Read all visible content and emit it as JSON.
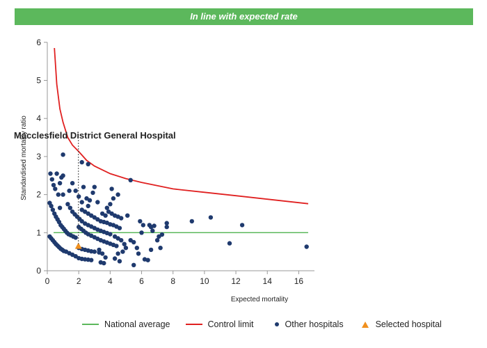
{
  "banner": {
    "text": "In line with expected rate",
    "color": "#5cb85c"
  },
  "chart_data": {
    "type": "scatter",
    "xlabel": "Expected mortality",
    "ylabel": "Standardised mortality ratio",
    "xlim": [
      0,
      17
    ],
    "ylim": [
      0,
      6
    ],
    "x_ticks": [
      0,
      2,
      4,
      6,
      8,
      10,
      12,
      14,
      16
    ],
    "y_ticks": [
      0,
      1,
      2,
      3,
      4,
      5,
      6
    ],
    "grid": false,
    "legend_position": "bottom",
    "highlight_label": "Macclesfield District General Hospital",
    "colors": {
      "national": "#5cb85c",
      "control": "#e02020",
      "others": "#1f3a6e",
      "selected": "#f0901e"
    },
    "series": [
      {
        "name": "National average",
        "kind": "line",
        "x": [
          0.4,
          16.6
        ],
        "y": [
          1,
          1
        ]
      },
      {
        "name": "Control limit",
        "kind": "line",
        "x": [
          0.45,
          0.6,
          0.8,
          1.0,
          1.3,
          1.6,
          2.0,
          2.5,
          3.0,
          4.0,
          5.0,
          6.0,
          8.0,
          10.0,
          12.0,
          14.0,
          16.6
        ],
        "y": [
          5.85,
          4.9,
          4.25,
          3.9,
          3.5,
          3.3,
          3.13,
          2.9,
          2.75,
          2.55,
          2.42,
          2.32,
          2.15,
          2.06,
          1.97,
          1.88,
          1.76
        ]
      },
      {
        "name": "Other hospitals",
        "kind": "scatter",
        "points": [
          [
            0.2,
            2.55
          ],
          [
            0.3,
            2.4
          ],
          [
            0.4,
            2.25
          ],
          [
            0.5,
            2.15
          ],
          [
            0.6,
            2.55
          ],
          [
            0.7,
            2.0
          ],
          [
            0.8,
            2.3
          ],
          [
            0.9,
            2.45
          ],
          [
            1.0,
            3.05
          ],
          [
            1.0,
            2.5
          ],
          [
            1.0,
            2.0
          ],
          [
            0.8,
            1.65
          ],
          [
            1.4,
            2.1
          ],
          [
            1.6,
            2.3
          ],
          [
            1.8,
            2.1
          ],
          [
            2.2,
            2.85
          ],
          [
            2.6,
            2.8
          ],
          [
            2.3,
            2.2
          ],
          [
            2.0,
            1.95
          ],
          [
            2.2,
            1.8
          ],
          [
            2.5,
            1.9
          ],
          [
            2.7,
            1.85
          ],
          [
            2.9,
            2.05
          ],
          [
            3.0,
            2.2
          ],
          [
            3.2,
            1.8
          ],
          [
            2.6,
            1.7
          ],
          [
            4.1,
            2.15
          ],
          [
            4.5,
            2.0
          ],
          [
            4.2,
            1.9
          ],
          [
            5.3,
            2.38
          ],
          [
            0.15,
            1.78
          ],
          [
            0.25,
            1.7
          ],
          [
            0.35,
            1.6
          ],
          [
            0.45,
            1.5
          ],
          [
            0.55,
            1.42
          ],
          [
            0.65,
            1.35
          ],
          [
            0.75,
            1.28
          ],
          [
            0.85,
            1.2
          ],
          [
            0.95,
            1.15
          ],
          [
            1.05,
            1.1
          ],
          [
            1.15,
            1.05
          ],
          [
            1.25,
            1.0
          ],
          [
            1.35,
            0.96
          ],
          [
            1.5,
            0.93
          ],
          [
            1.65,
            0.9
          ],
          [
            1.8,
            0.87
          ],
          [
            0.15,
            0.9
          ],
          [
            0.25,
            0.85
          ],
          [
            0.35,
            0.8
          ],
          [
            0.45,
            0.75
          ],
          [
            0.55,
            0.7
          ],
          [
            0.65,
            0.66
          ],
          [
            0.75,
            0.62
          ],
          [
            0.85,
            0.58
          ],
          [
            0.95,
            0.55
          ],
          [
            1.05,
            0.52
          ],
          [
            1.2,
            0.5
          ],
          [
            1.4,
            0.46
          ],
          [
            1.6,
            0.42
          ],
          [
            1.8,
            0.38
          ],
          [
            1.3,
            1.75
          ],
          [
            1.45,
            1.65
          ],
          [
            1.6,
            1.55
          ],
          [
            1.75,
            1.48
          ],
          [
            1.9,
            1.42
          ],
          [
            2.05,
            1.36
          ],
          [
            2.2,
            1.3
          ],
          [
            2.4,
            1.24
          ],
          [
            2.6,
            1.2
          ],
          [
            2.8,
            1.16
          ],
          [
            3.0,
            1.12
          ],
          [
            3.2,
            1.08
          ],
          [
            3.4,
            1.05
          ],
          [
            3.6,
            1.02
          ],
          [
            3.8,
            0.99
          ],
          [
            4.0,
            0.96
          ],
          [
            2.0,
            1.15
          ],
          [
            2.15,
            1.1
          ],
          [
            2.3,
            1.05
          ],
          [
            2.45,
            1.0
          ],
          [
            2.6,
            0.96
          ],
          [
            2.8,
            0.92
          ],
          [
            3.0,
            0.88
          ],
          [
            3.2,
            0.84
          ],
          [
            3.4,
            0.8
          ],
          [
            3.6,
            0.77
          ],
          [
            3.8,
            0.74
          ],
          [
            4.0,
            0.71
          ],
          [
            4.2,
            0.68
          ],
          [
            4.4,
            0.65
          ],
          [
            2.0,
            0.6
          ],
          [
            2.2,
            0.57
          ],
          [
            2.4,
            0.55
          ],
          [
            2.6,
            0.53
          ],
          [
            2.8,
            0.51
          ],
          [
            3.0,
            0.5
          ],
          [
            3.3,
            0.48
          ],
          [
            2.0,
            0.33
          ],
          [
            2.2,
            0.31
          ],
          [
            2.4,
            0.3
          ],
          [
            2.6,
            0.29
          ],
          [
            2.8,
            0.28
          ],
          [
            2.2,
            1.6
          ],
          [
            2.4,
            1.55
          ],
          [
            2.6,
            1.5
          ],
          [
            2.8,
            1.45
          ],
          [
            3.0,
            1.4
          ],
          [
            3.2,
            1.35
          ],
          [
            3.4,
            1.3
          ],
          [
            3.6,
            1.28
          ],
          [
            3.8,
            1.26
          ],
          [
            4.0,
            1.22
          ],
          [
            4.2,
            1.2
          ],
          [
            4.4,
            1.16
          ],
          [
            4.6,
            1.12
          ],
          [
            3.5,
            1.5
          ],
          [
            3.7,
            1.45
          ],
          [
            3.9,
            1.55
          ],
          [
            4.1,
            1.5
          ],
          [
            4.3,
            1.45
          ],
          [
            4.5,
            1.42
          ],
          [
            4.7,
            1.38
          ],
          [
            5.1,
            1.45
          ],
          [
            4.0,
            1.75
          ],
          [
            3.8,
            1.65
          ],
          [
            3.3,
            0.55
          ],
          [
            3.5,
            0.45
          ],
          [
            3.7,
            0.35
          ],
          [
            3.4,
            0.22
          ],
          [
            3.6,
            0.2
          ],
          [
            4.3,
            0.9
          ],
          [
            4.5,
            0.85
          ],
          [
            4.7,
            0.8
          ],
          [
            4.9,
            0.7
          ],
          [
            5.0,
            0.6
          ],
          [
            4.8,
            0.5
          ],
          [
            4.5,
            0.45
          ],
          [
            4.3,
            0.32
          ],
          [
            4.6,
            0.25
          ],
          [
            5.3,
            0.8
          ],
          [
            5.5,
            0.75
          ],
          [
            5.7,
            0.6
          ],
          [
            5.8,
            0.45
          ],
          [
            5.5,
            0.15
          ],
          [
            5.9,
            1.3
          ],
          [
            6.1,
            1.2
          ],
          [
            6.0,
            1.0
          ],
          [
            6.2,
            0.3
          ],
          [
            6.4,
            0.28
          ],
          [
            6.5,
            1.2
          ],
          [
            6.6,
            1.15
          ],
          [
            6.7,
            1.05
          ],
          [
            6.6,
            0.55
          ],
          [
            6.8,
            1.18
          ],
          [
            7.0,
            0.8
          ],
          [
            7.1,
            0.9
          ],
          [
            7.2,
            0.6
          ],
          [
            7.3,
            0.95
          ],
          [
            7.6,
            1.25
          ],
          [
            7.6,
            1.15
          ],
          [
            9.2,
            1.3
          ],
          [
            10.4,
            1.4
          ],
          [
            11.6,
            0.72
          ],
          [
            12.4,
            1.2
          ],
          [
            16.5,
            0.63
          ]
        ]
      },
      {
        "name": "Selected hospital",
        "kind": "marker",
        "points": [
          [
            1.98,
            0.65
          ]
        ]
      }
    ]
  }
}
